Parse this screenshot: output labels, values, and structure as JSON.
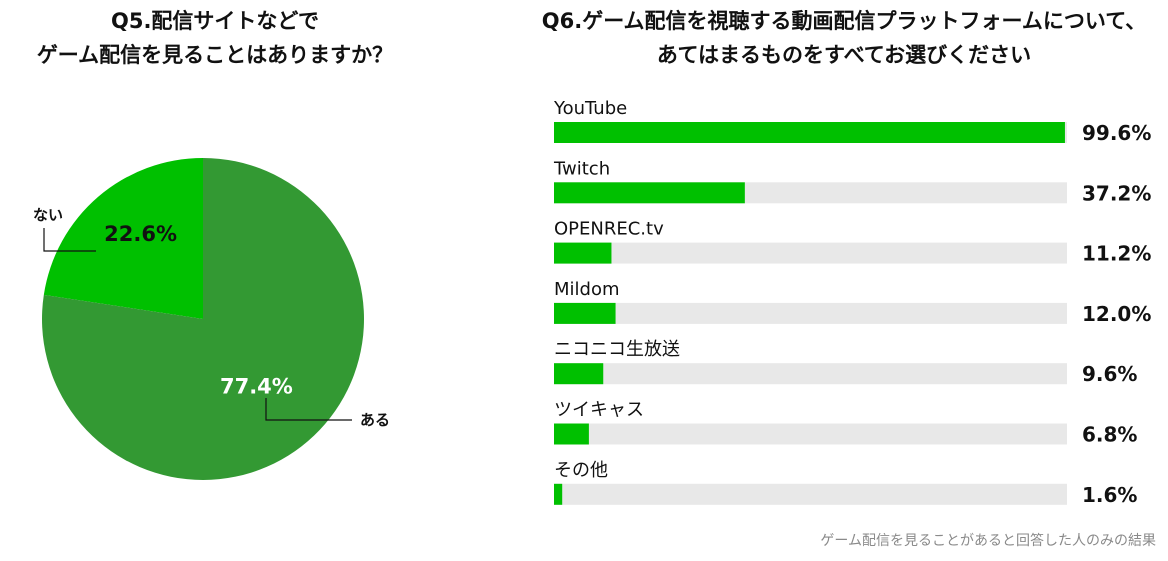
{
  "q5": {
    "title_line1": "Q5.配信サイトなどで",
    "title_line2": "ゲーム配信を見ることはありますか？"
  },
  "q6": {
    "title_line1": "Q6.ゲーム配信を視聴する動画配信プラットフォームについて、",
    "title_line2": "あてはまるものをすべてお選びください"
  },
  "footnote": "ゲーム配信を見ることがあると回答した人のみの結果",
  "chart_data": [
    {
      "type": "pie",
      "title": "Q5.配信サイトなどで ゲーム配信を見ることはありますか？",
      "slices": [
        {
          "label": "ない",
          "value": 22.6,
          "value_label": "22.6%",
          "color": "#00c000"
        },
        {
          "label": "ある",
          "value": 77.4,
          "value_label": "77.4%",
          "color": "#339933"
        }
      ],
      "start": "12 o'clock",
      "direction": "counterclockwise"
    },
    {
      "type": "bar",
      "orientation": "horizontal",
      "title": "Q6.ゲーム配信を視聴する動画配信プラットフォームについて、あてはまるものをすべてお選びください",
      "categories": [
        "YouTube",
        "Twitch",
        "OPENREC.tv",
        "Mildom",
        "ニコニコ生放送",
        "ツイキャス",
        "その他"
      ],
      "values": [
        99.6,
        37.2,
        11.2,
        12.0,
        9.6,
        6.8,
        1.6
      ],
      "value_labels": [
        "99.6%",
        "37.2%",
        "11.2%",
        "12.0%",
        "9.6%",
        "6.8%",
        "1.6%"
      ],
      "xlim": [
        0,
        100
      ],
      "bar_color": "#00c000",
      "track_color": "#e8e8e8"
    }
  ]
}
